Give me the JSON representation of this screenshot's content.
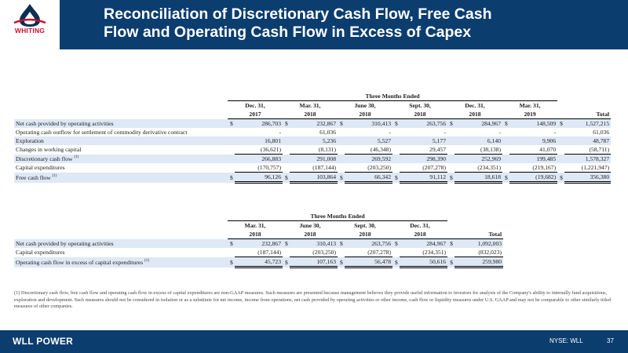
{
  "header": {
    "logo_text": "WHITING",
    "title_line1": "Reconciliation of Discretionary Cash Flow, Free Cash",
    "title_line2": "Flow and Operating Cash Flow in Excess of Capex"
  },
  "table1": {
    "group_header": "Three Months Ended",
    "col_line1": [
      "Dec. 31,",
      "Mar. 31,",
      "June 30,",
      "Sept. 30,",
      "Dec. 31,",
      "Mar. 31,"
    ],
    "col_line2": [
      "2017",
      "2018",
      "2018",
      "2018",
      "2018",
      "2019"
    ],
    "total_label": "Total",
    "rows": [
      {
        "label": "Net cash provided by operating activities",
        "values": [
          "$",
          "286,703",
          "$",
          "232,867",
          "$",
          "310,413",
          "$",
          "263,756",
          "$",
          "284,967",
          "$",
          "148,509",
          "$",
          "1,527,215"
        ]
      },
      {
        "label": "Operating cash outflow for settlement of commodity derivative contract",
        "values": [
          "",
          "-",
          "",
          "61,036",
          "",
          "-",
          "",
          "-",
          "",
          "-",
          "",
          "-",
          "",
          "61,036"
        ]
      },
      {
        "label": "Exploration",
        "values": [
          "",
          "16,801",
          "",
          "5,236",
          "",
          "5,527",
          "",
          "5,177",
          "",
          "6,140",
          "",
          "9,906",
          "",
          "48,787"
        ]
      },
      {
        "label": "Changes in working capital",
        "values": [
          "",
          "(36,621)",
          "",
          "(8,131)",
          "",
          "(46,348)",
          "",
          "29,457",
          "",
          "(38,138)",
          "",
          "41,070",
          "",
          "(58,711)"
        ]
      },
      {
        "label": "Discretionary cash flow",
        "sup": "(1)",
        "values": [
          "",
          "266,883",
          "",
          "291,008",
          "",
          "269,592",
          "",
          "298,390",
          "",
          "252,969",
          "",
          "199,485",
          "",
          "1,578,327"
        ]
      },
      {
        "label": "Capital expenditures",
        "values": [
          "",
          "(170,757)",
          "",
          "(187,144)",
          "",
          "(203,250)",
          "",
          "(207,278)",
          "",
          "(234,351)",
          "",
          "(219,167)",
          "",
          "(1,221,947)"
        ]
      },
      {
        "label": "Free cash flow",
        "sup": "(1)",
        "values": [
          "$",
          "96,126",
          "$",
          "103,864",
          "$",
          "66,342",
          "$",
          "91,112",
          "$",
          "18,618",
          "$",
          "(19,682)",
          "$",
          "356,380"
        ]
      }
    ]
  },
  "table2": {
    "group_header": "Three Months Ended",
    "col_line1": [
      "Mar. 31,",
      "June 30,",
      "Sept. 30,",
      "Dec. 31,"
    ],
    "col_line2": [
      "2018",
      "2018",
      "2018",
      "2018"
    ],
    "total_label": "Total",
    "rows": [
      {
        "label": "Net cash provided by operating activities",
        "values": [
          "$",
          "232,867",
          "$",
          "310,413",
          "$",
          "263,756",
          "$",
          "284,967",
          "$",
          "1,092,003"
        ]
      },
      {
        "label": "Capital expenditures",
        "values": [
          "",
          "(187,144)",
          "",
          "(203,250)",
          "",
          "(207,278)",
          "",
          "(234,351)",
          "",
          "(832,023)"
        ]
      },
      {
        "label": "Operating cash flow in excess of capital expenditures",
        "sup": "(1)",
        "values": [
          "$",
          "45,723",
          "$",
          "107,163",
          "$",
          "56,478",
          "$",
          "50,616",
          "$",
          "259,980"
        ]
      }
    ]
  },
  "footnote": "(1)   Discretionary cash flow, free cash flow and operating cash flow in excess of capital expenditures are non-GAAP measures.  Such measures are presented because management believes they provide useful information to investors for analysis of the Company's ability to internally fund acquisitions, exploration and development.  Such measures should not be considered in isolation or as a substitute for net income, income from operations, net cash provided by operating activities or other income, cash flow or liquidity measures under U.S. GAAP and may not be comparable to other similarly titled measures of other companies.",
  "footer": {
    "brand": "WLL POWER",
    "ticker": "NYSE: WLL",
    "page": "37"
  },
  "colors": {
    "navy": "#0b3d6e",
    "logo_red": "#c8102e",
    "row_shade": "#dfe8f5"
  }
}
